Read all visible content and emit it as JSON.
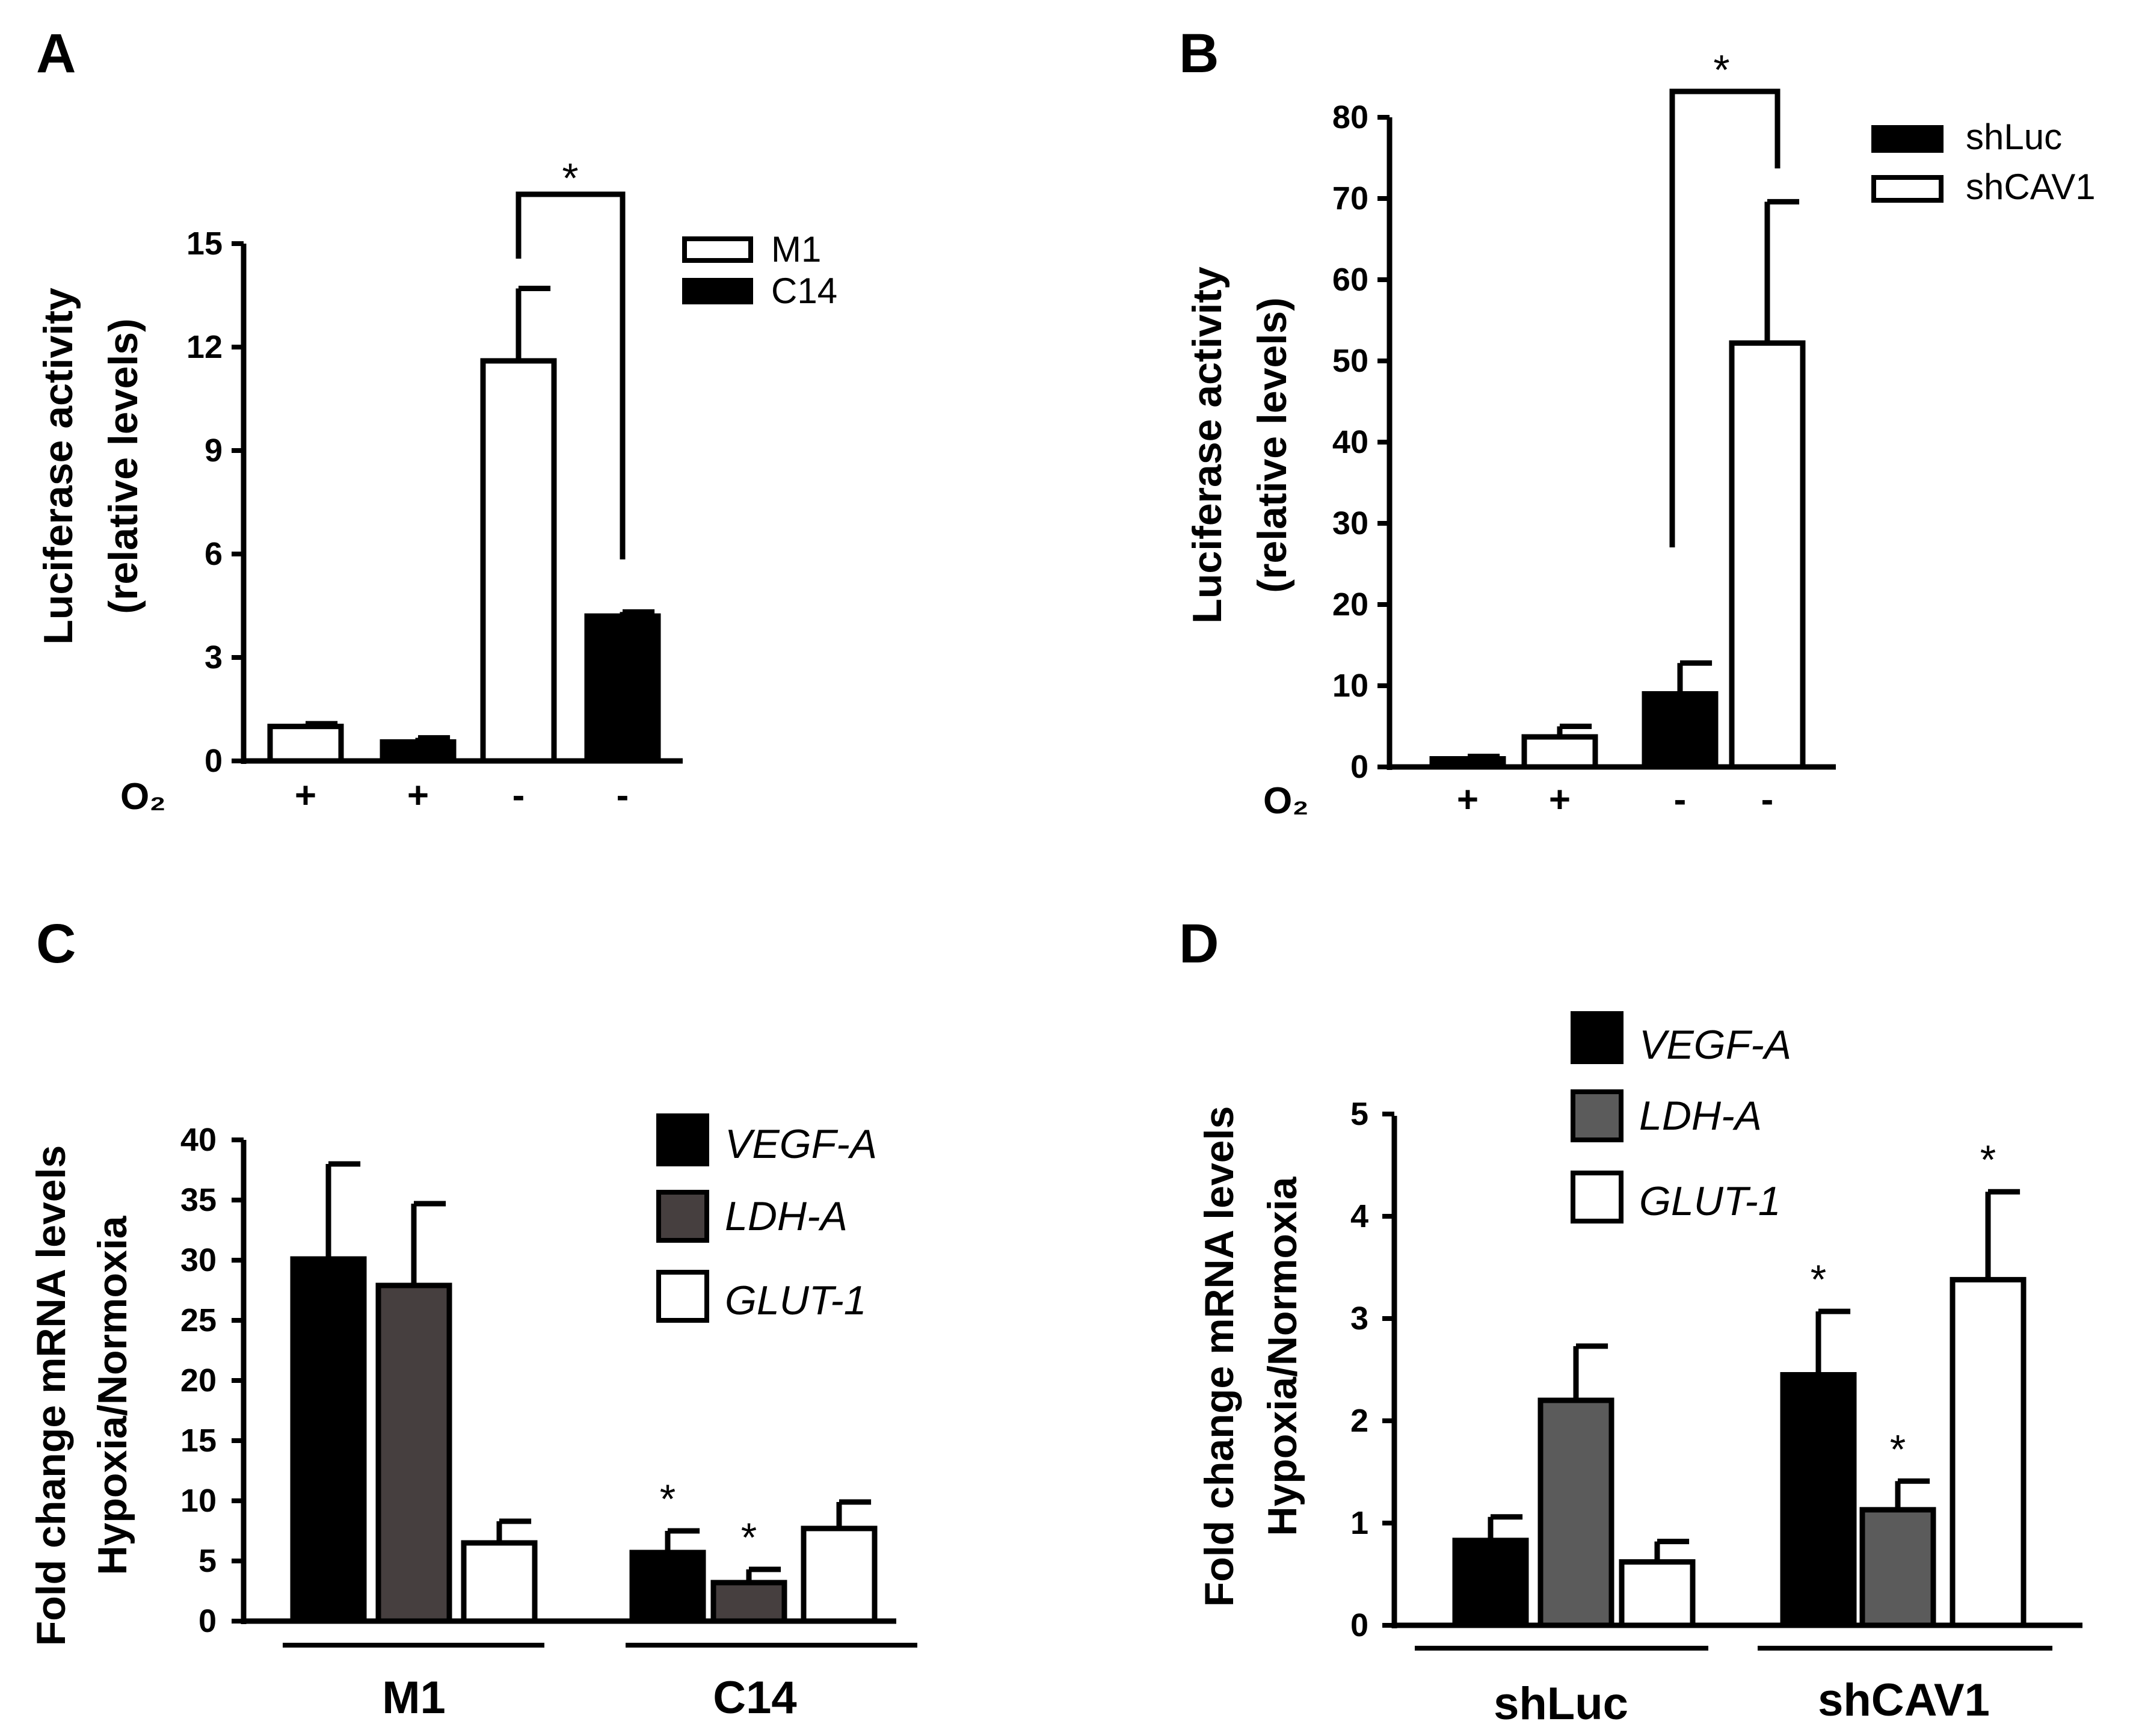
{
  "chart_data": [
    {
      "id": "A",
      "panel_label": "A",
      "type": "bar",
      "categories": [
        "+",
        "+",
        "-",
        "-"
      ],
      "category_series": [
        "M1",
        "C14",
        "M1",
        "C14"
      ],
      "category_axis_label": "O₂",
      "values": [
        1.0,
        0.55,
        11.6,
        4.2
      ],
      "errors": [
        0.08,
        0.12,
        2.1,
        0.12
      ],
      "ylabel_lines": [
        "Luciferase activity",
        "(relative levels)"
      ],
      "xlabel": "",
      "ylim": [
        0,
        15
      ],
      "yticks": [
        0,
        3,
        6,
        9,
        12,
        15
      ],
      "legend": [
        {
          "name": "M1",
          "color": "#ffffff"
        },
        {
          "name": "C14",
          "color": "#000000"
        }
      ],
      "significance": [
        {
          "from_bar": 2,
          "to_bar": 3,
          "label": "*"
        }
      ]
    },
    {
      "id": "B",
      "panel_label": "B",
      "type": "bar",
      "categories": [
        "+",
        "+",
        "-",
        "-"
      ],
      "category_series": [
        "shLuc",
        "shCAV1",
        "shLuc",
        "shCAV1"
      ],
      "category_axis_label": "O₂",
      "values": [
        1.0,
        3.7,
        9.0,
        52.2
      ],
      "errors": [
        0.3,
        1.3,
        3.8,
        17.4
      ],
      "ylabel_lines": [
        "Luciferase activity",
        "(relative levels)"
      ],
      "xlabel": "",
      "ylim": [
        0,
        80
      ],
      "yticks": [
        0,
        10,
        20,
        30,
        40,
        50,
        60,
        70,
        80
      ],
      "legend": [
        {
          "name": "shLuc",
          "color": "#000000"
        },
        {
          "name": "shCAV1",
          "color": "#ffffff"
        }
      ],
      "significance": [
        {
          "from_bar": 2,
          "to_bar": 3,
          "label": "*"
        }
      ]
    },
    {
      "id": "C",
      "panel_label": "C",
      "type": "bar",
      "groups": [
        "M1",
        "C14"
      ],
      "ylabel_lines": [
        "Fold change mRNA levels",
        "Hypoxia/Normoxia"
      ],
      "xlabel": "",
      "ylim": [
        0,
        40
      ],
      "yticks": [
        0,
        5,
        10,
        15,
        20,
        25,
        30,
        35,
        40
      ],
      "series": [
        {
          "name": "VEGF-A",
          "color": "#000000",
          "values": [
            30.1,
            5.7
          ],
          "errors": [
            7.9,
            1.8
          ],
          "stars": [
            "",
            "*"
          ]
        },
        {
          "name": "LDH-A",
          "color": "#463f3f",
          "values": [
            27.9,
            3.2
          ],
          "errors": [
            6.8,
            1.1
          ],
          "stars": [
            "",
            "*"
          ]
        },
        {
          "name": "GLUT-1",
          "color": "#ffffff",
          "values": [
            6.5,
            7.7
          ],
          "errors": [
            1.8,
            2.2
          ],
          "stars": [
            "",
            ""
          ]
        }
      ]
    },
    {
      "id": "D",
      "panel_label": "D",
      "type": "bar",
      "groups": [
        "shLuc",
        "shCAV1"
      ],
      "ylabel_lines": [
        "Fold change mRNA levels",
        "Hypoxia/Normoxia"
      ],
      "xlabel": "",
      "ylim": [
        0,
        5
      ],
      "yticks": [
        0,
        1,
        2,
        3,
        4,
        5
      ],
      "series": [
        {
          "name": "VEGF-A",
          "color": "#000000",
          "values": [
            0.83,
            2.45
          ],
          "errors": [
            0.23,
            0.62
          ],
          "stars": [
            "",
            "*"
          ]
        },
        {
          "name": "LDH-A",
          "color": "#5b5b5b",
          "values": [
            2.2,
            1.13
          ],
          "errors": [
            0.53,
            0.28
          ],
          "stars": [
            "",
            "*"
          ]
        },
        {
          "name": "GLUT-1",
          "color": "#ffffff",
          "values": [
            0.62,
            3.38
          ],
          "errors": [
            0.2,
            0.86
          ],
          "stars": [
            "",
            "*"
          ]
        }
      ]
    }
  ]
}
